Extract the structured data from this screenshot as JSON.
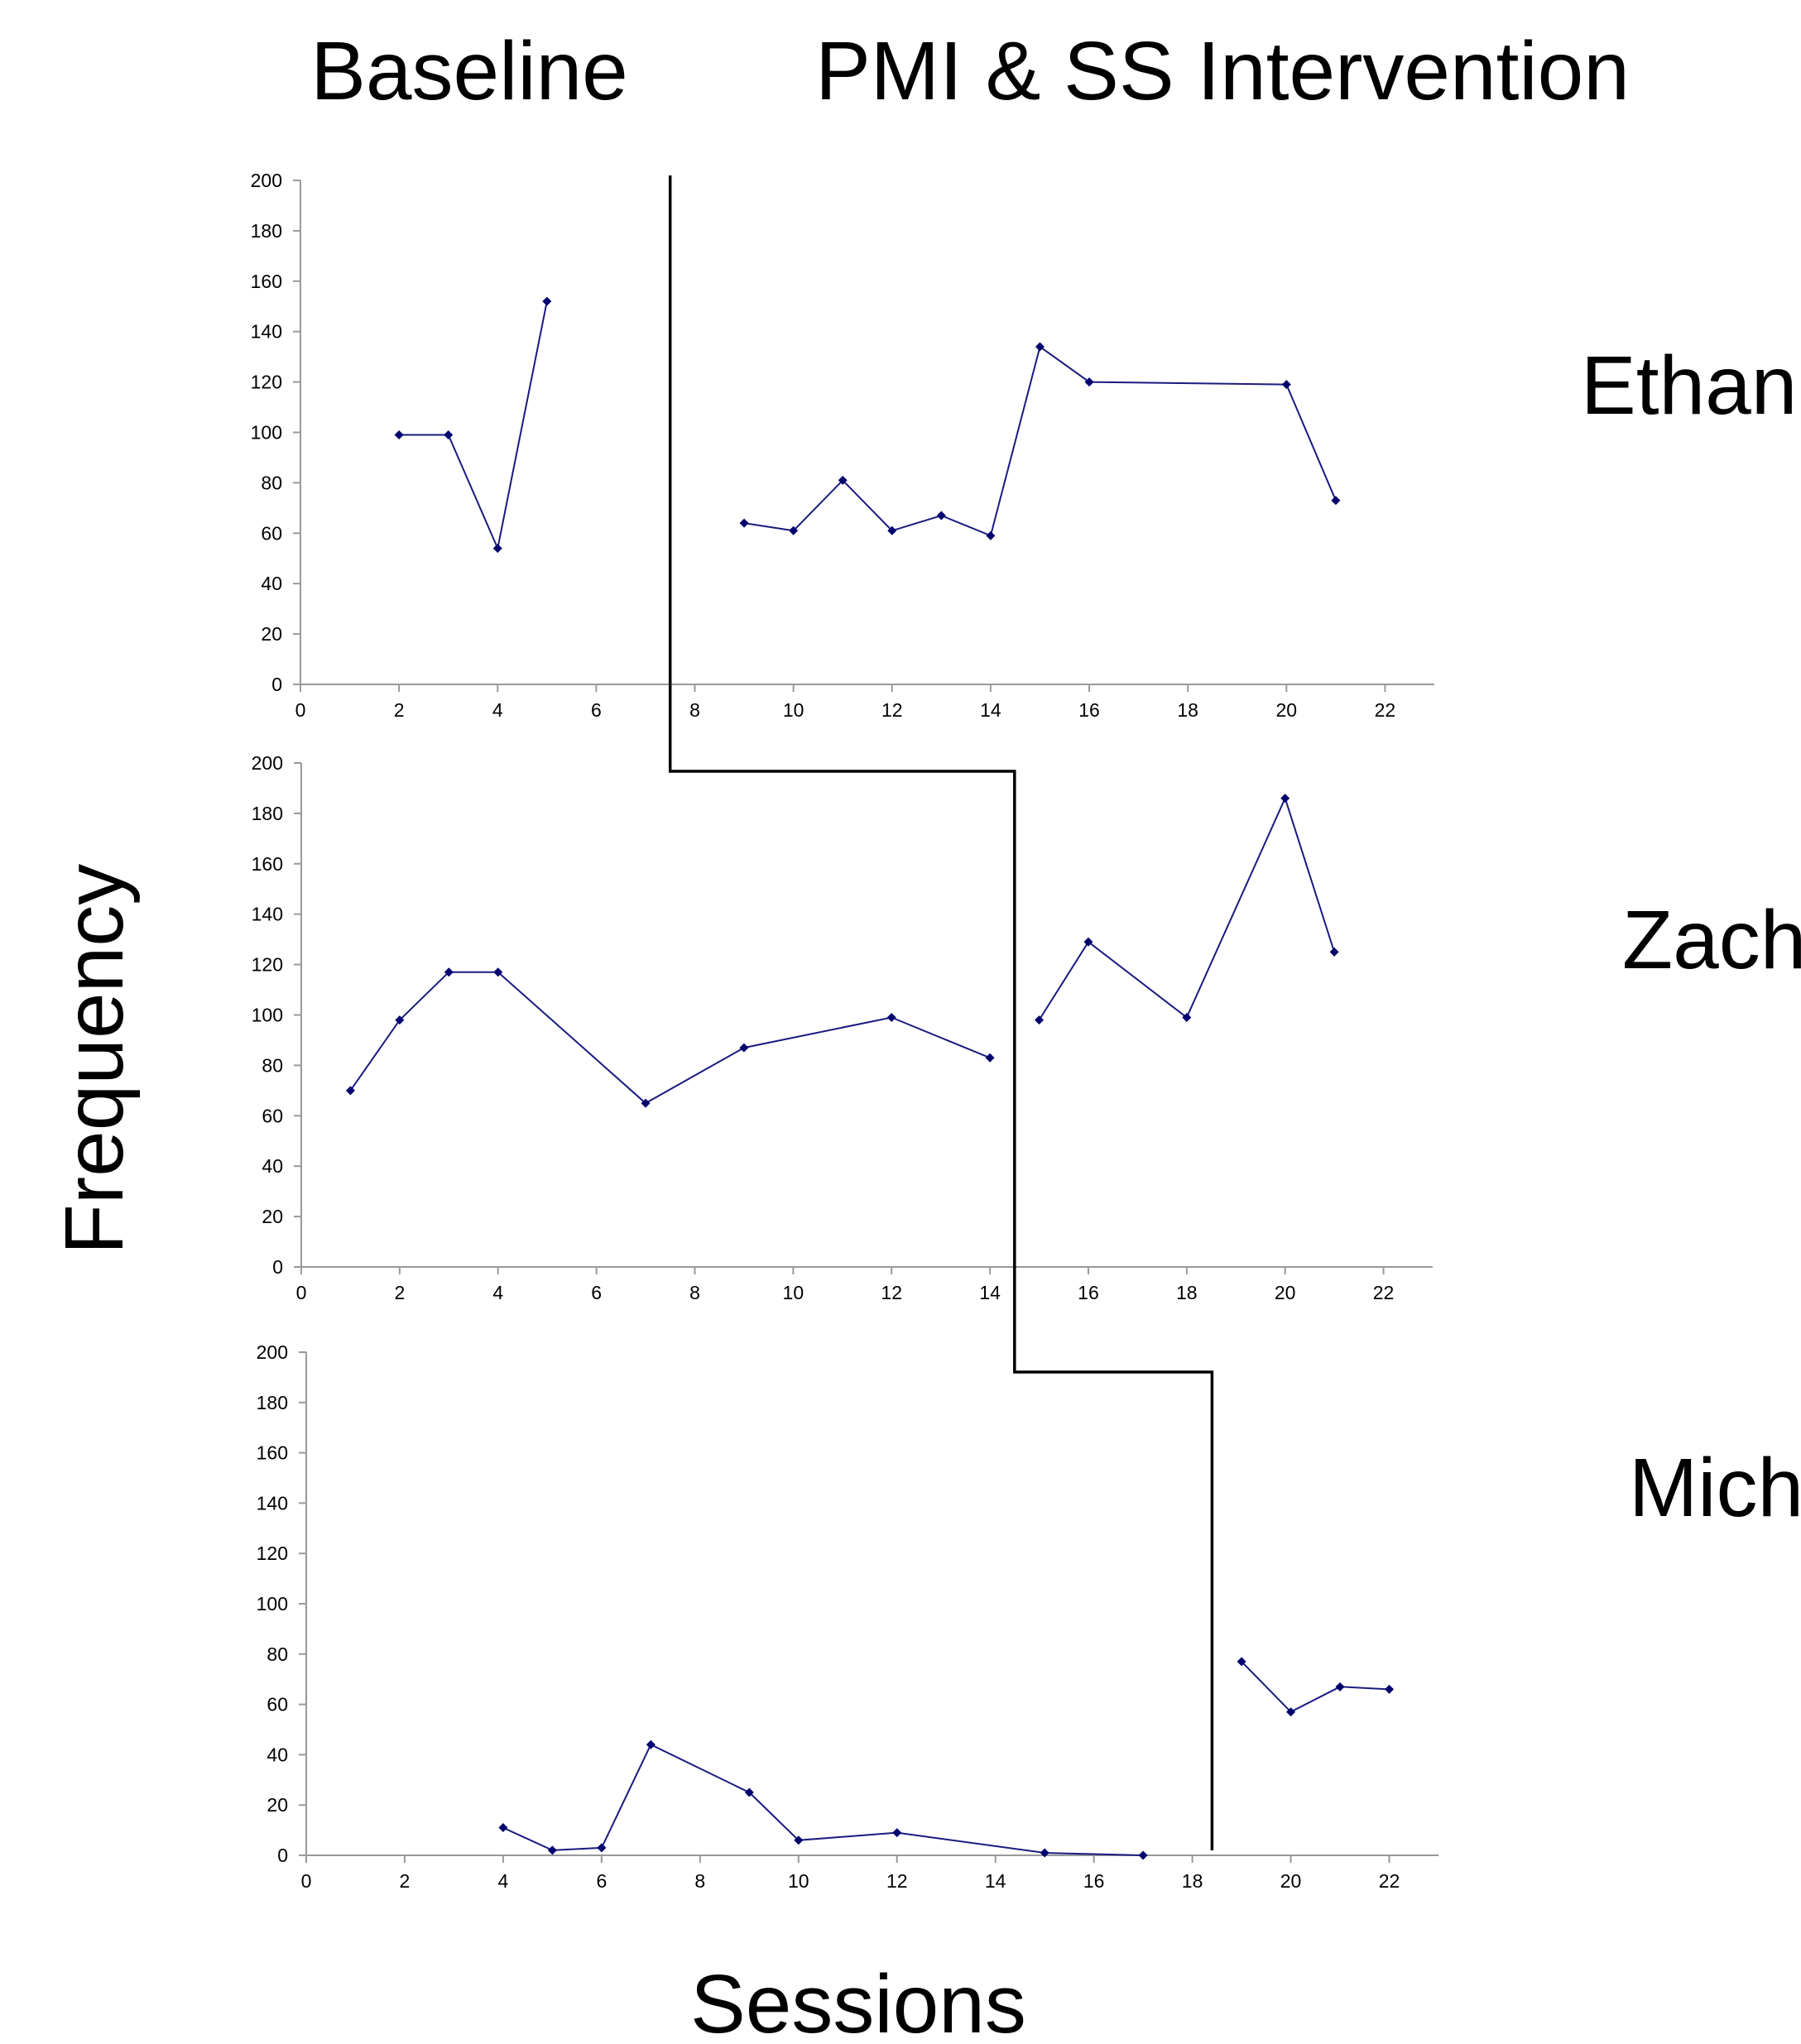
{
  "figure": {
    "phase_labels": {
      "baseline": "Baseline",
      "intervention": "PMI & SS Intervention"
    },
    "ylabel": "Frequency",
    "xlabel": "Sessions",
    "colors": {
      "series": "#1a1a80",
      "marker": "#00006e",
      "axis": "#999999",
      "phase_line": "#000000",
      "text": "#000000"
    }
  },
  "chart_data": [
    {
      "type": "line",
      "participant": "Ethan",
      "xlim": [
        0,
        23
      ],
      "ylim": [
        0,
        200
      ],
      "xticks": [
        "0",
        "2",
        "4",
        "6",
        "8",
        "10",
        "12",
        "14",
        "16",
        "18",
        "20",
        "22"
      ],
      "yticks": [
        "0",
        "20",
        "40",
        "60",
        "80",
        "100",
        "120",
        "140",
        "160",
        "180",
        "200"
      ],
      "phase_change_after_session": 7.5,
      "segments": [
        {
          "phase": "Baseline",
          "x": [
            2,
            3,
            4,
            5
          ],
          "y": [
            99,
            99,
            54,
            152
          ]
        },
        {
          "phase": "PMI & SS Intervention",
          "x": [
            9,
            10,
            11,
            12,
            13,
            14,
            15,
            16,
            20,
            21
          ],
          "y": [
            64,
            61,
            81,
            61,
            67,
            59,
            134,
            120,
            119,
            73
          ]
        }
      ]
    },
    {
      "type": "line",
      "participant": "Zachary",
      "xlim": [
        0,
        23
      ],
      "ylim": [
        0,
        200
      ],
      "xticks": [
        "0",
        "2",
        "4",
        "6",
        "8",
        "10",
        "12",
        "14",
        "16",
        "18",
        "20",
        "22"
      ],
      "yticks": [
        "0",
        "20",
        "40",
        "60",
        "80",
        "100",
        "120",
        "140",
        "160",
        "180",
        "200"
      ],
      "phase_change_after_session": 14.5,
      "segments": [
        {
          "phase": "Baseline",
          "x": [
            1,
            2,
            3,
            4,
            7,
            9,
            12,
            14
          ],
          "y": [
            70,
            98,
            117,
            117,
            65,
            87,
            99,
            83
          ]
        },
        {
          "phase": "PMI & SS Intervention",
          "x": [
            15,
            16,
            18,
            20,
            21
          ],
          "y": [
            98,
            129,
            99,
            186,
            125
          ]
        }
      ]
    },
    {
      "type": "line",
      "participant": "Michael",
      "xlim": [
        0,
        23
      ],
      "ylim": [
        0,
        200
      ],
      "xticks": [
        "0",
        "2",
        "4",
        "6",
        "8",
        "10",
        "12",
        "14",
        "16",
        "18",
        "20",
        "22"
      ],
      "yticks": [
        "0",
        "20",
        "40",
        "60",
        "80",
        "100",
        "120",
        "140",
        "160",
        "180",
        "200"
      ],
      "phase_change_after_session": 18.4,
      "segments": [
        {
          "phase": "Baseline",
          "x": [
            4,
            5,
            6,
            7,
            9,
            10,
            12,
            15,
            17
          ],
          "y": [
            11,
            2,
            3,
            44,
            25,
            6,
            9,
            1,
            0
          ]
        },
        {
          "phase": "PMI & SS Intervention",
          "x": [
            19,
            20,
            21,
            22
          ],
          "y": [
            77,
            57,
            67,
            66
          ]
        }
      ]
    }
  ]
}
